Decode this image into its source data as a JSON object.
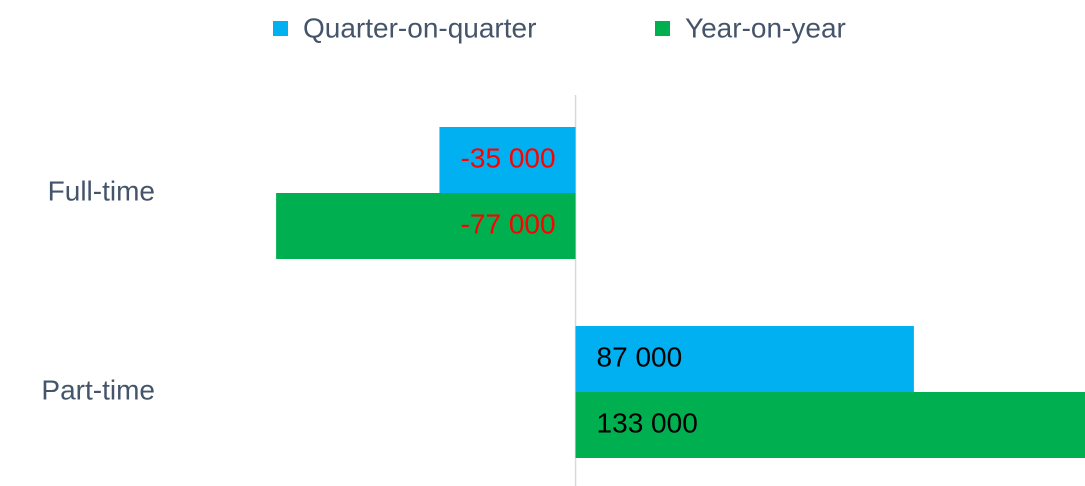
{
  "chart_data": {
    "type": "hbar",
    "categories": [
      "Full-time",
      "Part-time"
    ],
    "series": [
      {
        "name": "Quarter-on-quarter",
        "color": "#00b0f0",
        "values": [
          -35000,
          87000
        ],
        "value_labels": [
          "-35 000",
          "87 000"
        ]
      },
      {
        "name": "Year-on-year",
        "color": "#00b050",
        "values": [
          -77000,
          133000
        ],
        "value_labels": [
          "-77 000",
          "133 000"
        ]
      }
    ],
    "xlim": [
      -148000,
      131000
    ],
    "legend": "top"
  }
}
